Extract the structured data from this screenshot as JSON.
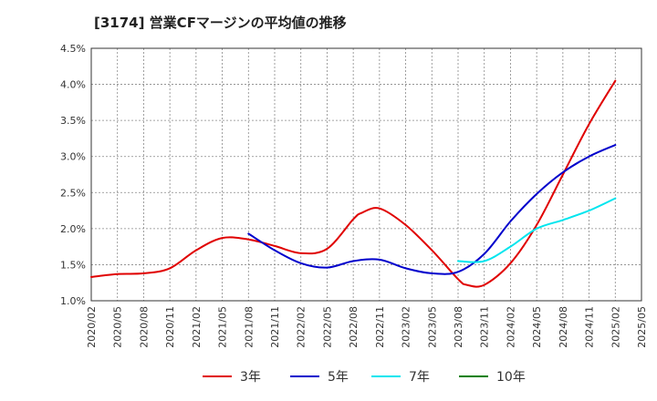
{
  "chart_data": {
    "type": "line",
    "title": "[3174]  営業CFマージンの平均値の推移",
    "xlabel": "",
    "ylabel": "",
    "x_tick_labels": [
      "2020/02",
      "2020/05",
      "2020/08",
      "2020/11",
      "2021/02",
      "2021/05",
      "2021/08",
      "2021/11",
      "2022/02",
      "2022/05",
      "2022/08",
      "2022/11",
      "2023/02",
      "2023/05",
      "2023/08",
      "2023/11",
      "2024/02",
      "2024/05",
      "2024/08",
      "2024/11",
      "2025/02",
      "2025/05"
    ],
    "y_tick_labels": [
      "1.0%",
      "1.5%",
      "2.0%",
      "2.5%",
      "3.0%",
      "3.5%",
      "4.0%",
      "4.5%"
    ],
    "ylim": [
      1.0,
      4.5
    ],
    "grid": true,
    "legend_position": "bottom",
    "series": [
      {
        "name": "3年",
        "color": "#e00000",
        "x": [
          "2020/02",
          "2020/05",
          "2020/08",
          "2020/11",
          "2021/02",
          "2021/05",
          "2021/08",
          "2021/11",
          "2022/02",
          "2022/05",
          "2022/08",
          "2022/09",
          "2022/11",
          "2023/02",
          "2023/05",
          "2023/08",
          "2023/09",
          "2023/11",
          "2024/02",
          "2024/05",
          "2024/08",
          "2024/11",
          "2025/02"
        ],
        "values": [
          1.33,
          1.37,
          1.38,
          1.45,
          1.7,
          1.87,
          1.85,
          1.76,
          1.66,
          1.72,
          2.13,
          2.22,
          2.28,
          2.05,
          1.7,
          1.3,
          1.22,
          1.22,
          1.52,
          2.05,
          2.75,
          3.45,
          4.05
        ]
      },
      {
        "name": "5年",
        "color": "#0000cc",
        "x": [
          "2021/08",
          "2021/11",
          "2022/02",
          "2022/05",
          "2022/08",
          "2022/11",
          "2023/02",
          "2023/05",
          "2023/08",
          "2023/11",
          "2024/02",
          "2024/05",
          "2024/08",
          "2024/11",
          "2025/02"
        ],
        "values": [
          1.93,
          1.7,
          1.52,
          1.46,
          1.55,
          1.57,
          1.45,
          1.38,
          1.4,
          1.65,
          2.1,
          2.48,
          2.78,
          3.0,
          3.16
        ]
      },
      {
        "name": "7年",
        "color": "#00e5ee",
        "x": [
          "2023/08",
          "2023/11",
          "2024/02",
          "2024/05",
          "2024/08",
          "2024/11",
          "2025/02"
        ],
        "values": [
          1.55,
          1.55,
          1.75,
          2.0,
          2.12,
          2.25,
          2.42
        ]
      },
      {
        "name": "10年",
        "color": "#008000",
        "x": [],
        "values": []
      }
    ]
  }
}
